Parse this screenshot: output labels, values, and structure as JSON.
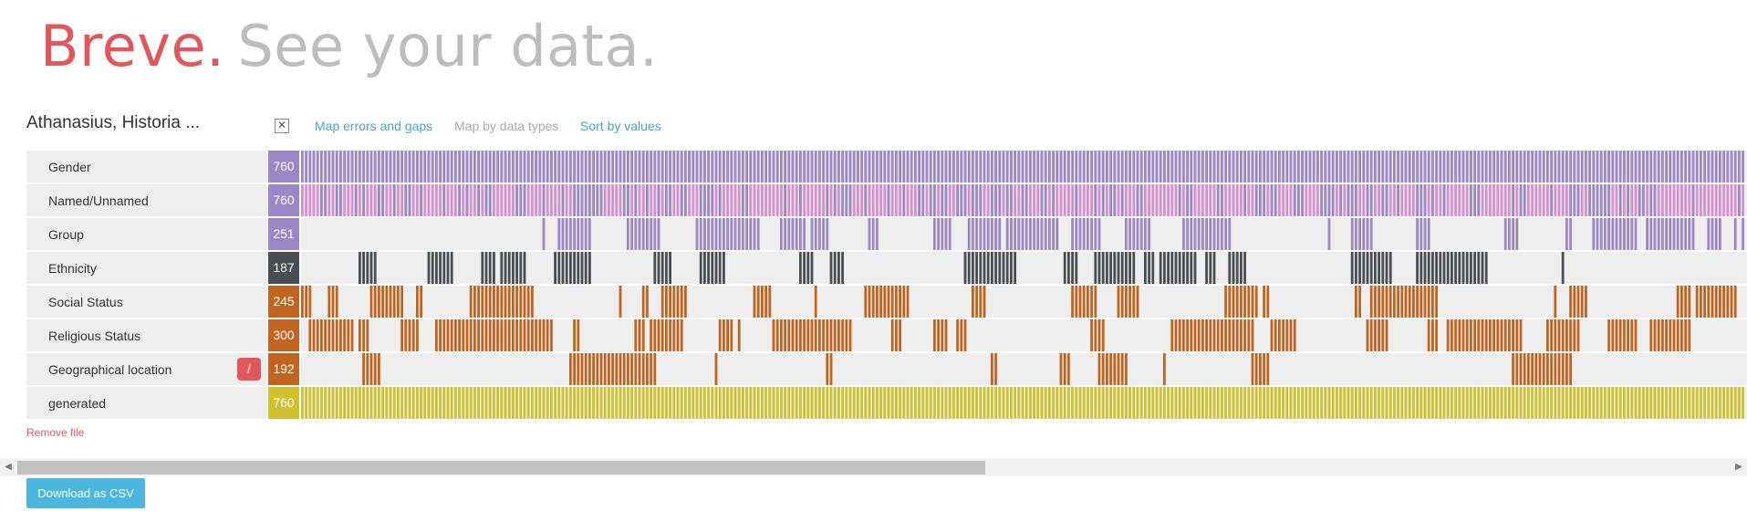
{
  "header": {
    "brand": "Breve.",
    "tagline": "See your data."
  },
  "file": {
    "title": "Athanasius, Historia ...",
    "close_glyph": "✕",
    "remove_label": "Remove file"
  },
  "modes": {
    "errors_label": "Map errors and gaps",
    "types_label": "Map by data types",
    "sort_label": "Sort by values",
    "active": "errors"
  },
  "colors": {
    "purple": "#9b87c6",
    "pink": "#d68fcf",
    "charcoal": "#4a4d52",
    "orange": "#c1641f",
    "yellow": "#cfc22e",
    "accent_red": "#e0585b",
    "button_blue": "#4bb6de"
  },
  "rows": [
    {
      "label": "Gender",
      "count": "760",
      "color": "#9b87c6",
      "pattern": "full",
      "warn": false
    },
    {
      "label": "Named/Unnamed",
      "count": "760",
      "color": "#9b87c6",
      "alt_color": "#d68fcf",
      "pattern": "mixed",
      "warn": false
    },
    {
      "label": "Group",
      "count": "251",
      "color": "#9b87c6",
      "pattern": "sparse",
      "warn": false
    },
    {
      "label": "Ethnicity",
      "count": "187",
      "color": "#4a4d52",
      "pattern": "sparse",
      "warn": false
    },
    {
      "label": "Social Status",
      "count": "245",
      "color": "#c1641f",
      "pattern": "sparse",
      "warn": false
    },
    {
      "label": "Religious Status",
      "count": "300",
      "color": "#c1641f",
      "pattern": "sparse",
      "warn": false
    },
    {
      "label": "Geographical location",
      "count": "192",
      "color": "#c1641f",
      "pattern": "sparse",
      "warn": true,
      "warn_glyph": "/"
    },
    {
      "label": "generated",
      "count": "760",
      "color": "#cfc22e",
      "pattern": "full",
      "warn": false
    }
  ],
  "download_label": "Download as CSV",
  "scrollbar": {
    "left_arrow": "◀",
    "right_arrow": "▶",
    "thumb_fraction": 0.56
  }
}
